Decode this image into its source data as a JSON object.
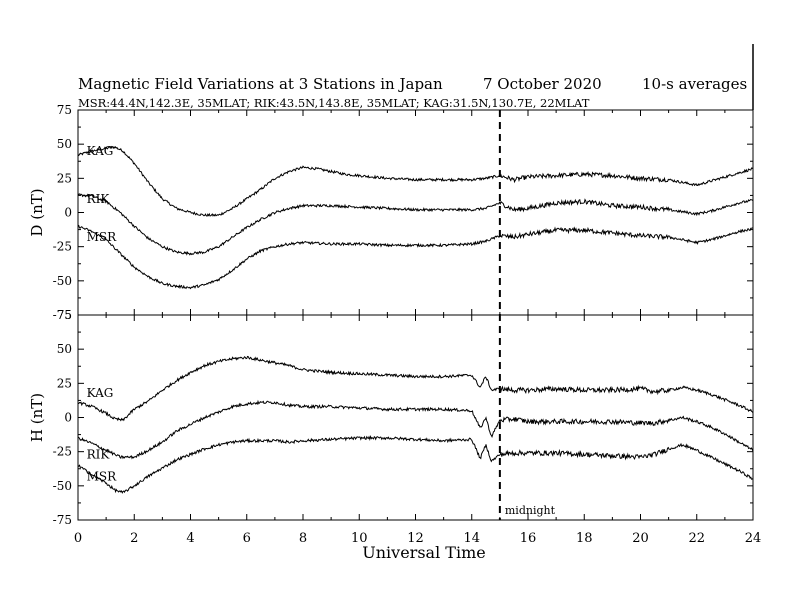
{
  "header": {
    "title": "Magnetic Field Variations at 3 Stations in Japan",
    "date": "7   October 2020",
    "averaging": "10-s averages",
    "stations_line": "MSR:44.4N,142.3E, 35MLAT;  RIK:43.5N,143.8E, 35MLAT;  KAG:31.5N,130.7E, 22MLAT"
  },
  "chart_data": {
    "type": "line",
    "xlabel": "Universal Time",
    "xlim": [
      0,
      24
    ],
    "xticks": [
      0,
      2,
      4,
      6,
      8,
      10,
      12,
      14,
      16,
      18,
      20,
      22,
      24
    ],
    "vline": {
      "x": 15,
      "label": "midnight"
    },
    "panels": [
      {
        "id": "D",
        "ylabel": "D (nT)",
        "ylim": [
          -75,
          75
        ],
        "yticks": [
          75,
          50,
          25,
          0,
          -25,
          -50,
          -75
        ],
        "series": [
          {
            "name": "KAG",
            "label_xy": [
              0.2,
              45
            ],
            "x": [
              0,
              0.5,
              1,
              1.3,
              1.6,
              2,
              2.5,
              3,
              3.5,
              4,
              4.5,
              5,
              5.5,
              6,
              6.5,
              7,
              7.5,
              8,
              8.5,
              9,
              9.5,
              10,
              11,
              12,
              13,
              14,
              14.5,
              15,
              15.5,
              16,
              17,
              18,
              19,
              20,
              21,
              22,
              22.5,
              23,
              23.5,
              24
            ],
            "y": [
              42,
              45,
              47,
              48,
              45,
              36,
              22,
              10,
              3,
              0,
              -2,
              -2,
              3,
              10,
              17,
              25,
              30,
              33,
              32,
              30,
              28,
              27,
              25,
              24,
              24,
              24,
              25,
              27,
              24,
              26,
              27,
              28,
              27,
              25,
              24,
              20,
              23,
              26,
              29,
              32
            ]
          },
          {
            "name": "RIK",
            "label_xy": [
              0.2,
              10
            ],
            "x": [
              0,
              0.5,
              1,
              1.5,
              2,
              2.5,
              3,
              3.5,
              4,
              4.5,
              5,
              5.5,
              6,
              6.5,
              7,
              7.5,
              8,
              9,
              10,
              11,
              12,
              13,
              14,
              14.5,
              15,
              15.5,
              16,
              17,
              18,
              19,
              20,
              21,
              22,
              22.5,
              23,
              23.5,
              24
            ],
            "y": [
              13,
              12,
              8,
              0,
              -10,
              -19,
              -25,
              -29,
              -30,
              -29,
              -25,
              -18,
              -11,
              -5,
              0,
              3,
              5,
              5,
              4,
              3,
              2,
              2,
              2,
              3,
              7,
              2,
              3,
              7,
              8,
              5,
              4,
              2,
              -1,
              1,
              4,
              7,
              9
            ]
          },
          {
            "name": "MSR",
            "label_xy": [
              0.2,
              -18
            ],
            "x": [
              0,
              0.5,
              1,
              1.5,
              2,
              2.5,
              3,
              3.5,
              4,
              4.5,
              5,
              5.5,
              6,
              6.5,
              7,
              7.5,
              8,
              9,
              10,
              11,
              12,
              13,
              14,
              14.5,
              15,
              15.5,
              16,
              17,
              18,
              19,
              20,
              21,
              22,
              22.5,
              23,
              23.5,
              24
            ],
            "y": [
              -10,
              -14,
              -20,
              -30,
              -40,
              -47,
              -52,
              -54,
              -55,
              -53,
              -49,
              -42,
              -34,
              -28,
              -25,
              -23,
              -22,
              -23,
              -23,
              -24,
              -24,
              -24,
              -23,
              -21,
              -17,
              -18,
              -16,
              -13,
              -13,
              -15,
              -17,
              -18,
              -22,
              -20,
              -17,
              -14,
              -12
            ]
          }
        ]
      },
      {
        "id": "H",
        "ylabel": "H (nT)",
        "ylim": [
          -75,
          75
        ],
        "yticks": [
          75,
          50,
          25,
          0,
          -25,
          -50,
          -75
        ],
        "series": [
          {
            "name": "KAG",
            "label_xy": [
              0.2,
              18
            ],
            "x": [
              0,
              0.5,
              1,
              1.3,
              1.6,
              2,
              2.5,
              3,
              3.5,
              4,
              4.5,
              5,
              5.5,
              6,
              6.5,
              7,
              7.5,
              8,
              9,
              10,
              11,
              12,
              13,
              14,
              14.3,
              14.5,
              14.7,
              15,
              15.5,
              16,
              17,
              18,
              19,
              20,
              20.5,
              21,
              21.5,
              22,
              22.5,
              23,
              23.5,
              24
            ],
            "y": [
              11,
              8,
              3,
              -1,
              -2,
              6,
              12,
              20,
              27,
              33,
              38,
              41,
              43,
              44,
              42,
              40,
              38,
              35,
              33,
              32,
              31,
              30,
              30,
              31,
              22,
              30,
              20,
              21,
              20,
              20,
              21,
              20,
              20,
              21,
              19,
              20,
              22,
              20,
              17,
              13,
              9,
              4
            ]
          },
          {
            "name": "RIK",
            "label_xy": [
              0.2,
              -27
            ],
            "x": [
              0,
              0.5,
              1,
              1.5,
              2,
              2.5,
              3,
              3.5,
              4,
              4.5,
              5,
              5.5,
              6,
              6.5,
              7,
              7.5,
              8,
              9,
              10,
              11,
              12,
              13,
              14,
              14.3,
              14.5,
              14.7,
              15,
              15.5,
              16,
              17,
              18,
              19,
              20,
              20.5,
              21,
              21.5,
              22,
              22.5,
              23,
              23.5,
              24
            ],
            "y": [
              -15,
              -19,
              -24,
              -29,
              -29,
              -24,
              -18,
              -10,
              -5,
              0,
              4,
              8,
              10,
              11,
              11,
              9,
              8,
              8,
              7,
              6,
              6,
              6,
              5,
              -8,
              0,
              -14,
              -2,
              -1,
              -3,
              -3,
              -3,
              -3,
              -4,
              -4,
              -2,
              0,
              -3,
              -7,
              -12,
              -18,
              -24
            ]
          },
          {
            "name": "MSR",
            "label_xy": [
              0.2,
              -43
            ],
            "x": [
              0,
              0.5,
              1,
              1.3,
              1.6,
              2,
              2.5,
              3,
              3.5,
              4,
              4.5,
              5,
              5.5,
              6,
              6.5,
              7,
              7.5,
              8,
              9,
              10,
              11,
              12,
              13,
              14,
              14.3,
              14.5,
              14.7,
              15,
              15.5,
              16,
              17,
              18,
              19,
              20,
              20.5,
              21,
              21.5,
              22,
              22.5,
              23,
              23.5,
              24
            ],
            "y": [
              -35,
              -42,
              -48,
              -53,
              -55,
              -50,
              -43,
              -37,
              -31,
              -27,
              -23,
              -20,
              -18,
              -17,
              -17,
              -17,
              -18,
              -17,
              -16,
              -15,
              -15,
              -16,
              -17,
              -16,
              -30,
              -20,
              -32,
              -27,
              -26,
              -26,
              -26,
              -27,
              -28,
              -29,
              -27,
              -23,
              -20,
              -24,
              -29,
              -34,
              -39,
              -45
            ]
          }
        ]
      }
    ]
  }
}
